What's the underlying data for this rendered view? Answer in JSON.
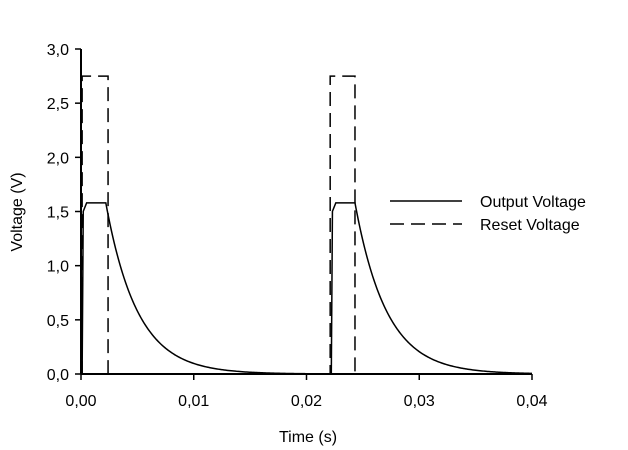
{
  "chart_data": {
    "type": "line",
    "title": "",
    "xlabel": "Time (s)",
    "ylabel": "Voltage (V)",
    "xlim": [
      0,
      0.04
    ],
    "ylim": [
      0,
      3.0
    ],
    "x_ticks": [
      0,
      0.01,
      0.02,
      0.03,
      0.04
    ],
    "x_tick_labels": [
      "0,00",
      "0,01",
      "0,02",
      "0,03",
      "0,04"
    ],
    "y_ticks": [
      0,
      0.5,
      1.0,
      1.5,
      2.0,
      2.5,
      3.0
    ],
    "y_tick_labels": [
      "0,0",
      "0,5",
      "1,0",
      "1,5",
      "2,0",
      "2,5",
      "3,0"
    ],
    "grid": false,
    "legend": {
      "placement": "center-right"
    },
    "series": [
      {
        "name": "Output Voltage",
        "style": "solid",
        "color": "#000000",
        "description": "saturating pulse then exponential decay, repeating",
        "pulses": [
          {
            "start": 0.0001,
            "end": 0.0022,
            "level": 1.58,
            "decay_tau": 0.0028
          },
          {
            "start": 0.0222,
            "end": 0.0243,
            "level": 1.58,
            "decay_tau": 0.0028
          }
        ]
      },
      {
        "name": "Reset Voltage",
        "style": "dashed",
        "color": "#000000",
        "pulses": [
          {
            "start": 0.0001,
            "end": 0.0024,
            "level": 2.75
          },
          {
            "start": 0.0221,
            "end": 0.0243,
            "level": 2.75
          }
        ]
      }
    ]
  }
}
